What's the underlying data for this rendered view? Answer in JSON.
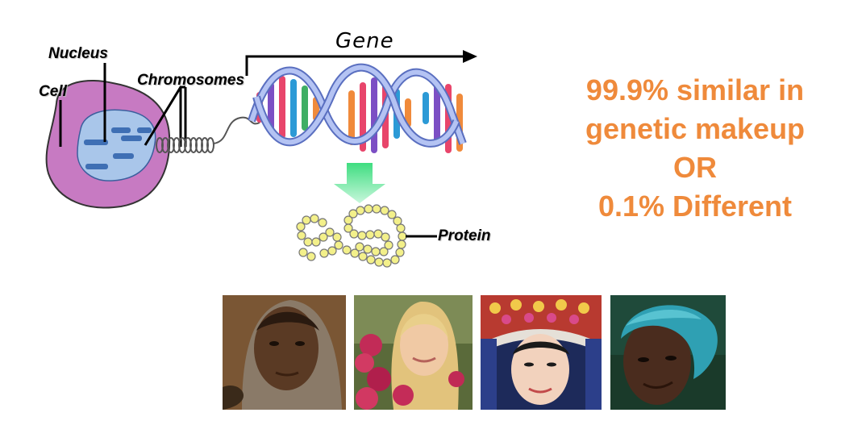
{
  "labels": {
    "nucleus": "Nucleus",
    "cell": "Cell",
    "chromosomes": "Chromosomes",
    "gene": "Gene",
    "protein": "Protein"
  },
  "statement": {
    "line1": "99.9% similar in",
    "line2": "genetic makeup",
    "line3": "OR",
    "line4": "0.1% Different",
    "color": "#ef8a3b"
  },
  "colors": {
    "cell": "#c77ac2",
    "nucleus": "#a9c6ea",
    "dna_backbone": "#7b8fd6",
    "arrow": "#3ee07f",
    "protein_beads": "#f3f08a"
  },
  "photos": [
    {
      "name": "woman-in-headscarf-portrait"
    },
    {
      "name": "blonde-woman-with-flowers-portrait"
    },
    {
      "name": "woman-in-ornate-headdress-portrait"
    },
    {
      "name": "woman-in-teal-headwrap-portrait"
    }
  ]
}
